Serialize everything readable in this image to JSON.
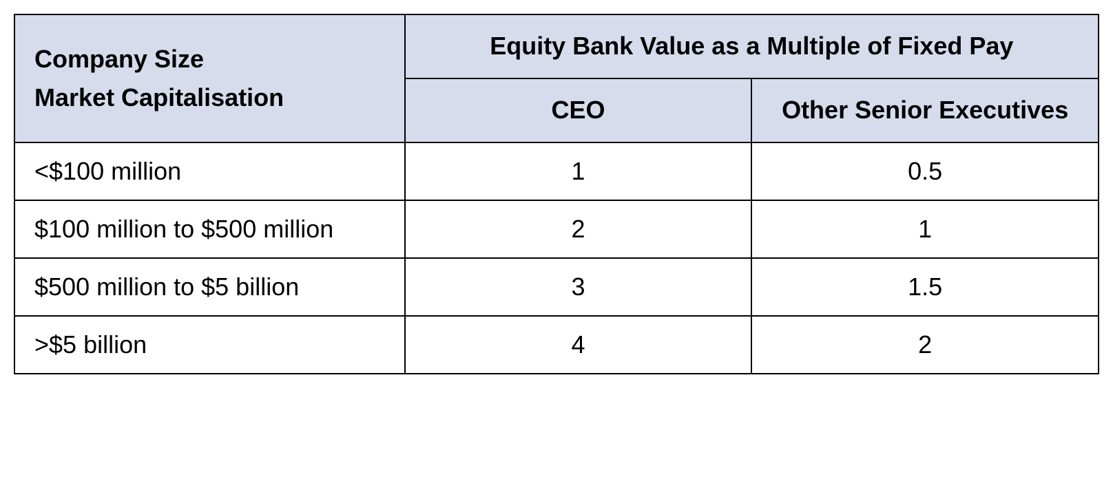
{
  "table": {
    "type": "table",
    "header_bg": "#d6dcec",
    "border_color": "#000000",
    "text_color": "#000000",
    "font_family": "Segoe UI, Arial, sans-serif",
    "header_fontsize_pt": 27,
    "body_fontsize_pt": 27,
    "header_fontweight": 700,
    "body_fontweight": 400,
    "row_header": {
      "line1": "Company Size",
      "line2": "Market Capitalisation"
    },
    "top_span_header": "Equity Bank Value as a Multiple of Fixed Pay",
    "sub_headers": {
      "ceo": "CEO",
      "other": "Other Senior Executives"
    },
    "column_widths_pct": [
      36,
      32,
      32
    ],
    "rows": [
      {
        "label": "<$100 million",
        "ceo": "1",
        "other": "0.5"
      },
      {
        "label": "$100 million to $500 million",
        "ceo": "2",
        "other": "1"
      },
      {
        "label": "$500 million to $5 billion",
        "ceo": "3",
        "other": "1.5"
      },
      {
        "label": ">$5 billion",
        "ceo": "4",
        "other": "2"
      }
    ]
  }
}
